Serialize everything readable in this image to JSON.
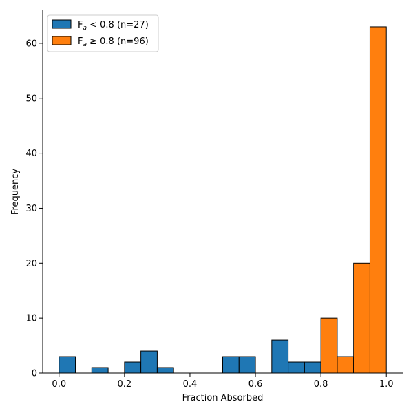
{
  "chart_data": {
    "type": "bar",
    "subtype": "histogram",
    "xlabel": "Fraction Absorbed",
    "ylabel": "Frequency",
    "xlim": [
      -0.05,
      1.05
    ],
    "ylim": [
      0,
      66
    ],
    "xticks": [
      "0.0",
      "0.2",
      "0.4",
      "0.6",
      "0.8",
      "1.0"
    ],
    "yticks": [
      "0",
      "10",
      "20",
      "30",
      "40",
      "50",
      "60"
    ],
    "bin_width": 0.05,
    "grid": false,
    "legend_position": "top-left",
    "series": [
      {
        "label_main": "F",
        "label_sub": "a",
        "label_rest": " < 0.8 (n=27)",
        "color": "#1f77b4",
        "bins": [
          {
            "start": 0.0,
            "count": 3
          },
          {
            "start": 0.1,
            "count": 1
          },
          {
            "start": 0.2,
            "count": 2
          },
          {
            "start": 0.25,
            "count": 4
          },
          {
            "start": 0.3,
            "count": 1
          },
          {
            "start": 0.5,
            "count": 3
          },
          {
            "start": 0.55,
            "count": 3
          },
          {
            "start": 0.65,
            "count": 6
          },
          {
            "start": 0.7,
            "count": 2
          },
          {
            "start": 0.75,
            "count": 2
          }
        ]
      },
      {
        "label_main": "F",
        "label_sub": "a",
        "label_rest": " ≥ 0.8 (n=96)",
        "color": "#ff7f0e",
        "bins": [
          {
            "start": 0.8,
            "count": 10
          },
          {
            "start": 0.85,
            "count": 3
          },
          {
            "start": 0.9,
            "count": 20
          },
          {
            "start": 0.95,
            "count": 63
          }
        ]
      }
    ]
  }
}
